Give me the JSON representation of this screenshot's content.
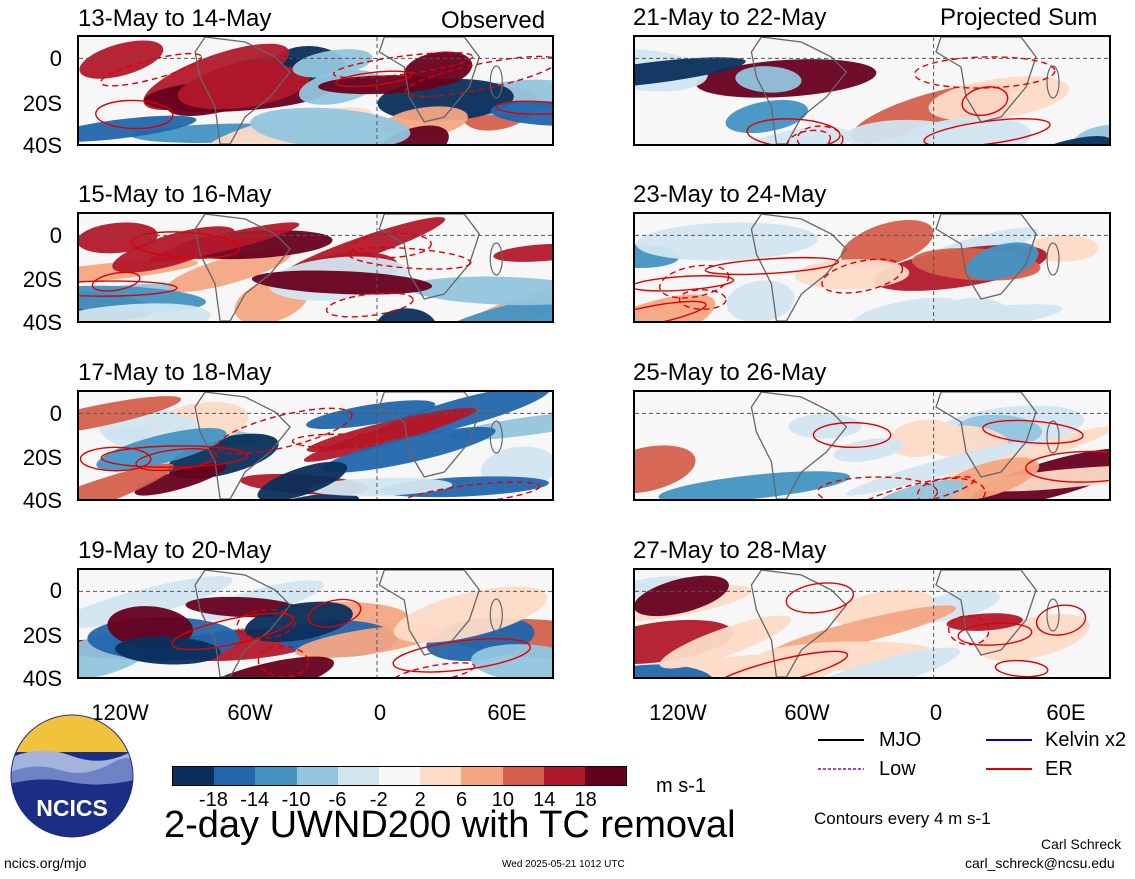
{
  "header": {
    "left_label": "Observed",
    "right_label": "Projected Sum"
  },
  "panels": {
    "left": [
      {
        "title": "13-May to 14-May"
      },
      {
        "title": "15-May to 16-May"
      },
      {
        "title": "17-May to 18-May"
      },
      {
        "title": "19-May to 20-May"
      }
    ],
    "right": [
      {
        "title": "21-May to 22-May"
      },
      {
        "title": "23-May to 24-May"
      },
      {
        "title": "25-May to 26-May"
      },
      {
        "title": "27-May to 28-May"
      }
    ]
  },
  "lat_labels": [
    "0",
    "20S",
    "40S"
  ],
  "lon_labels": [
    "120W",
    "60W",
    "0",
    "60E"
  ],
  "colorbar": {
    "ticks": [
      "-18",
      "-14",
      "-10",
      "-6",
      "-2",
      "2",
      "6",
      "10",
      "14",
      "18"
    ],
    "unit": "m s-1",
    "colors": [
      "#0a2f5c",
      "#2166ac",
      "#4393c3",
      "#92c5de",
      "#d1e5f0",
      "#f7f7f7",
      "#fddbc7",
      "#f4a582",
      "#d6604d",
      "#b2182b",
      "#67001f"
    ]
  },
  "legend": {
    "mjo": "MJO",
    "kelvin": "Kelvin x2",
    "low": "Low",
    "er": "ER",
    "mjo_color": "#000000",
    "kelvin_color": "#0000cc",
    "low_color": "#b23bd6",
    "er_color": "#e00000"
  },
  "title": "2-day UWND200 with TC removal",
  "contour_note": "Contours every 4 m s-1",
  "footer": {
    "logo_text": "NCICS",
    "url": "ncics.org/mjo",
    "timestamp": "Wed 2025-05-21 1012 UTC",
    "author": "Carl Schreck",
    "email": "carl_schreck@ncsu.edu"
  }
}
